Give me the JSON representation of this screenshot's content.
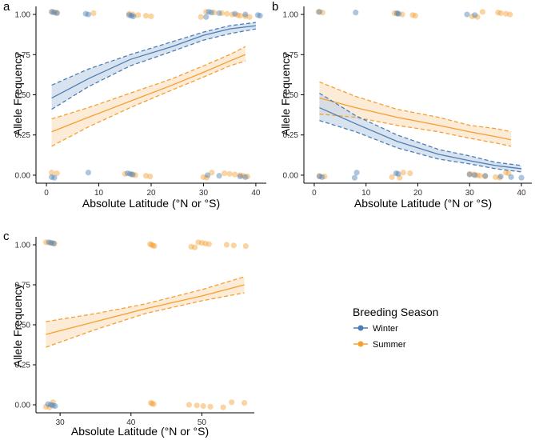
{
  "colors": {
    "winter": "#4a7fb5",
    "summer": "#f5a030",
    "winter_fill": "#c9d7ea",
    "summer_fill": "#fbe3c4",
    "axis": "#000000"
  },
  "legend": {
    "title": "Breeding Season",
    "items": [
      {
        "label": "Winter",
        "color": "#4a7fb5"
      },
      {
        "label": "Summer",
        "color": "#f5a030"
      }
    ]
  },
  "chart_data": [
    {
      "panel": "a",
      "type": "line",
      "xlabel": "Absolute Latitude (°N or °S)",
      "ylabel": "Allele Frequency",
      "xlim": [
        -2,
        42
      ],
      "ylim": [
        -0.05,
        1.05
      ],
      "xticks": [
        0,
        10,
        20,
        30,
        40
      ],
      "yticks": [
        0.0,
        0.25,
        0.5,
        0.75,
        1.0
      ],
      "ytick_labels": [
        "0.00",
        "0.25",
        "0.50",
        "0.75",
        "1.00"
      ],
      "series": [
        {
          "name": "Winter",
          "x": [
            1,
            8,
            16,
            24,
            30,
            35,
            40
          ],
          "fit": [
            0.48,
            0.6,
            0.72,
            0.8,
            0.87,
            0.91,
            0.93
          ],
          "lower": [
            0.41,
            0.55,
            0.68,
            0.77,
            0.84,
            0.88,
            0.91
          ],
          "upper": [
            0.56,
            0.66,
            0.75,
            0.83,
            0.89,
            0.93,
            0.95
          ],
          "points": {
            "at_one": [
              1,
              1.5,
              2,
              7.5,
              8,
              15.8,
              16.2,
              16.6,
              30.5,
              31,
              31.5,
              33,
              36,
              38,
              40.4,
              40.8
            ],
            "at_zero": [
              1,
              1.5,
              8,
              15.5,
              16,
              16.5,
              30.8,
              33,
              37,
              38
            ]
          }
        },
        {
          "name": "Summer",
          "x": [
            1,
            8,
            16,
            24,
            30,
            35,
            38
          ],
          "fit": [
            0.27,
            0.36,
            0.46,
            0.56,
            0.64,
            0.71,
            0.75
          ],
          "lower": [
            0.18,
            0.3,
            0.42,
            0.53,
            0.61,
            0.68,
            0.71
          ],
          "upper": [
            0.35,
            0.42,
            0.51,
            0.6,
            0.68,
            0.75,
            0.8
          ],
          "points": {
            "at_one": [
              1.2,
              2,
              9,
              15.8,
              16.5,
              17.5,
              19,
              20,
              29.5,
              30.5,
              32,
              33.5,
              34.5,
              35.5,
              36.5,
              37,
              38,
              38.8
            ],
            "at_zero": [
              1,
              2,
              15,
              16.3,
              17,
              19,
              19.8,
              30,
              30.6,
              31.6,
              34,
              35,
              36,
              37,
              37.6,
              38.4
            ]
          }
        }
      ]
    },
    {
      "panel": "b",
      "type": "line",
      "xlabel": "Absolute Latitude (°N or °S)",
      "ylabel": "Allele Frequency",
      "xlim": [
        -2,
        42
      ],
      "ylim": [
        -0.05,
        1.05
      ],
      "xticks": [
        0,
        10,
        20,
        30,
        40
      ],
      "yticks": [
        0.0,
        0.25,
        0.5,
        0.75,
        1.0
      ],
      "ytick_labels": [
        "0.00",
        "0.25",
        "0.50",
        "0.75",
        "1.00"
      ],
      "series": [
        {
          "name": "Winter",
          "x": [
            1,
            8,
            16,
            24,
            30,
            35,
            40
          ],
          "fit": [
            0.42,
            0.32,
            0.21,
            0.13,
            0.09,
            0.06,
            0.04
          ],
          "lower": [
            0.34,
            0.27,
            0.17,
            0.1,
            0.07,
            0.04,
            0.02
          ],
          "upper": [
            0.51,
            0.37,
            0.25,
            0.16,
            0.12,
            0.08,
            0.06
          ],
          "points": {
            "at_one": [
              1,
              8,
              16,
              16.3,
              29.5,
              31
            ],
            "at_zero": [
              1,
              1.5,
              7.8,
              8.2,
              15.8,
              16.2,
              30,
              31,
              33,
              36,
              38,
              40
            ]
          }
        },
        {
          "name": "Summer",
          "x": [
            1,
            8,
            16,
            24,
            30,
            35,
            38
          ],
          "fit": [
            0.48,
            0.42,
            0.36,
            0.31,
            0.27,
            0.24,
            0.22
          ],
          "lower": [
            0.38,
            0.36,
            0.31,
            0.27,
            0.23,
            0.2,
            0.18
          ],
          "upper": [
            0.58,
            0.49,
            0.41,
            0.36,
            0.31,
            0.29,
            0.27
          ],
          "points": {
            "at_one": [
              0.8,
              1.6,
              15.5,
              16,
              17,
              19,
              19.5,
              30.5,
              31.5,
              32.5,
              35.5,
              36,
              37,
              37.8
            ],
            "at_zero": [
              1,
              2,
              15,
              16.5,
              17.2,
              18.5,
              30,
              30.8,
              31.5,
              32,
              33,
              35,
              35.8,
              37,
              37.5
            ]
          }
        }
      ]
    },
    {
      "panel": "c",
      "type": "line",
      "xlabel": "Absolute Latitude (°N or °S)",
      "ylabel": "Allele Frequency",
      "xlim": [
        26.6,
        57.4
      ],
      "ylim": [
        -0.05,
        1.05
      ],
      "xticks": [
        30,
        40,
        50
      ],
      "yticks": [
        0.0,
        0.25,
        0.5,
        0.75,
        1.0
      ],
      "ytick_labels": [
        "0.00",
        "0.25",
        "0.50",
        "0.75",
        "1.00"
      ],
      "series": [
        {
          "name": "Winter",
          "x": [],
          "fit": [],
          "lower": [],
          "upper": [],
          "points": {
            "at_one": [
              28.4,
              28.8,
              29.1
            ],
            "at_zero": [
              28.3,
              28.7,
              29,
              29.3
            ]
          }
        },
        {
          "name": "Summer",
          "x": [
            28,
            35,
            42,
            50,
            56
          ],
          "fit": [
            0.44,
            0.52,
            0.6,
            0.68,
            0.75
          ],
          "lower": [
            0.36,
            0.47,
            0.57,
            0.65,
            0.7
          ],
          "upper": [
            0.52,
            0.57,
            0.63,
            0.72,
            0.8
          ],
          "points": {
            "at_one": [
              28,
              28.6,
              29.2,
              42.7,
              42.9,
              43.1,
              43.3,
              48.5,
              49,
              49.5,
              50,
              50.5,
              51,
              53.5,
              54.5,
              56.2
            ],
            "at_zero": [
              28,
              28.5,
              29,
              42.8,
              43,
              43.2,
              48.2,
              49.3,
              50.2,
              51.2,
              53,
              54.2,
              56
            ]
          }
        }
      ]
    }
  ]
}
